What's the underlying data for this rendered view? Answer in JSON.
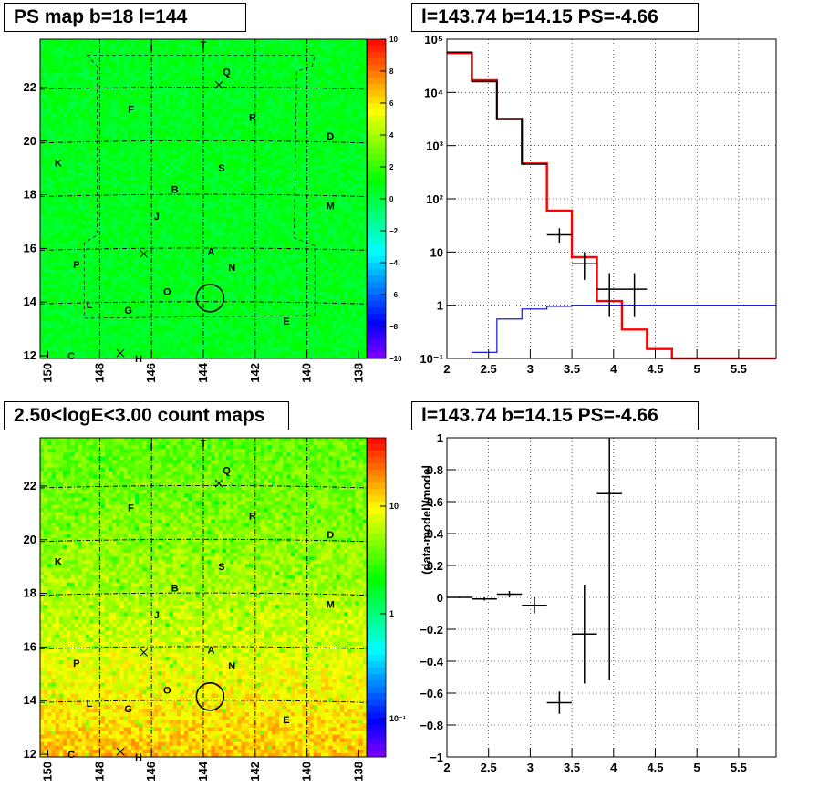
{
  "panels": {
    "ps_map": {
      "title": "PS map b=18 l=144",
      "xticks": [
        "150",
        "148",
        "146",
        "144",
        "142",
        "140",
        "138"
      ],
      "yticks": [
        "12",
        "14",
        "16",
        "18",
        "20",
        "22"
      ],
      "colorbar_ticks": [
        "10",
        "8",
        "6",
        "4",
        "2",
        "0",
        "−2",
        "−4",
        "−6",
        "−8",
        "−10"
      ]
    },
    "spectrum": {
      "title": "l=143.74 b=14.15 PS=-4.66",
      "xticks": [
        "2",
        "2.5",
        "3",
        "3.5",
        "4",
        "4.5",
        "5",
        "5.5"
      ],
      "yticks": [
        "10⁻¹",
        "1",
        "10",
        "10²",
        "10³",
        "10⁴",
        "10⁵"
      ]
    },
    "count_map": {
      "title": "2.50<logE<3.00 count maps",
      "xticks": [
        "150",
        "148",
        "146",
        "144",
        "142",
        "140",
        "138"
      ],
      "yticks": [
        "12",
        "14",
        "16",
        "18",
        "20",
        "22"
      ],
      "colorbar_ticks": [
        "10",
        "1",
        "10⁻¹"
      ]
    },
    "residual": {
      "title": "l=143.74 b=14.15 PS=-4.66",
      "ylabel": "(data-model)/model",
      "xticks": [
        "2",
        "2.5",
        "3",
        "3.5",
        "4",
        "4.5",
        "5",
        "5.5"
      ],
      "yticks": [
        "−1",
        "−0.8",
        "−0.6",
        "−0.4",
        "−0.2",
        "0",
        "0.2",
        "0.4",
        "0.6",
        "0.8",
        "1"
      ]
    }
  },
  "map_labels": [
    {
      "t": "I",
      "l": 146.0,
      "b": 23.5
    },
    {
      "t": "T",
      "l": 144.0,
      "b": 23.6
    },
    {
      "t": "Q",
      "l": 143.1,
      "b": 22.6
    },
    {
      "t": "F",
      "l": 146.8,
      "b": 21.2
    },
    {
      "t": "R",
      "l": 142.1,
      "b": 20.9
    },
    {
      "t": "D",
      "l": 139.1,
      "b": 20.2
    },
    {
      "t": "K",
      "l": 149.6,
      "b": 19.2
    },
    {
      "t": "S",
      "l": 143.3,
      "b": 19.0
    },
    {
      "t": "B",
      "l": 145.1,
      "b": 18.2
    },
    {
      "t": "M",
      "l": 139.1,
      "b": 17.6
    },
    {
      "t": "J",
      "l": 145.8,
      "b": 17.2
    },
    {
      "t": "A",
      "l": 143.7,
      "b": 15.9
    },
    {
      "t": "P",
      "l": 148.9,
      "b": 15.4
    },
    {
      "t": "N",
      "l": 142.9,
      "b": 15.3
    },
    {
      "t": "O",
      "l": 145.4,
      "b": 14.4
    },
    {
      "t": "L",
      "l": 148.4,
      "b": 13.9
    },
    {
      "t": "G",
      "l": 146.9,
      "b": 13.7
    },
    {
      "t": "E",
      "l": 140.8,
      "b": 13.3
    },
    {
      "t": "C",
      "l": 149.1,
      "b": 12.0
    },
    {
      "t": "H",
      "l": 146.5,
      "b": 11.9
    }
  ],
  "map_crosses": [
    {
      "l": 143.4,
      "b": 22.1
    },
    {
      "l": 146.3,
      "b": 15.8
    },
    {
      "l": 147.2,
      "b": 12.1
    }
  ],
  "map_circle": {
    "l": 143.74,
    "b": 14.15
  },
  "chart_data": [
    {
      "type": "heatmap",
      "title": "PS map b=18 l=144",
      "xlim": [
        150.3,
        137.7
      ],
      "ylim": [
        11.9,
        23.8
      ],
      "zlim": [
        -10,
        10
      ],
      "colormap": "rainbow",
      "dominant_value": 0
    },
    {
      "type": "line",
      "title": "l=143.74 b=14.15 PS=-4.66",
      "yscale": "log",
      "xlim": [
        2,
        5.95
      ],
      "ylim": [
        0.1,
        100000
      ],
      "grid": true,
      "series": [
        {
          "color": "#ff0000",
          "style": "step",
          "edges": [
            2,
            2.3,
            2.6,
            2.9,
            3.2,
            3.5,
            3.8,
            4.1,
            4.4,
            4.7,
            5.0,
            5.3,
            5.6,
            5.95
          ],
          "values": [
            55000,
            17000,
            3200,
            460,
            60,
            8,
            1.2,
            0.35,
            0.15,
            0.1,
            0.1,
            0.1,
            0.1
          ]
        },
        {
          "color": "#000000",
          "style": "step",
          "edges": [
            2,
            2.3,
            2.6,
            2.9,
            3.2
          ],
          "values": [
            57000,
            16000,
            3100,
            450
          ]
        },
        {
          "color": "#0000cc",
          "style": "step",
          "edges": [
            2,
            2.3,
            2.6,
            2.9,
            3.2,
            3.5,
            3.8,
            5.95
          ],
          "values": [
            0.1,
            0.13,
            0.55,
            0.85,
            0.95,
            1.0,
            1.0
          ]
        },
        {
          "color": "#000000",
          "style": "errorbar",
          "points": [
            {
              "x": 3.35,
              "y": 21,
              "xerr": 0.15,
              "ylo": 15,
              "yhi": 28
            },
            {
              "x": 3.65,
              "y": 6,
              "xerr": 0.15,
              "ylo": 3,
              "yhi": 10
            },
            {
              "x": 3.95,
              "y": 2,
              "xerr": 0.15,
              "ylo": 0.6,
              "yhi": 4
            },
            {
              "x": 4.25,
              "y": 2,
              "xerr": 0.15,
              "ylo": 0.6,
              "yhi": 4
            }
          ]
        }
      ]
    },
    {
      "type": "heatmap",
      "title": "2.50<logE<3.00 count maps",
      "xlim": [
        150.3,
        137.7
      ],
      "ylim": [
        11.9,
        23.8
      ],
      "zscale": "log",
      "colormap": "rainbow"
    },
    {
      "type": "scatter",
      "title": "l=143.74 b=14.15 PS=-4.66",
      "ylabel": "(data-model)/model",
      "xlim": [
        2,
        5.95
      ],
      "ylim": [
        -1,
        1
      ],
      "grid": true,
      "points": [
        {
          "x": 2.15,
          "y": 0.0,
          "xerr": 0.15,
          "yerr": 0.005
        },
        {
          "x": 2.45,
          "y": -0.01,
          "xerr": 0.15,
          "yerr": 0.01
        },
        {
          "x": 2.75,
          "y": 0.02,
          "xerr": 0.15,
          "yerr": 0.02
        },
        {
          "x": 3.05,
          "y": -0.05,
          "xerr": 0.15,
          "yerr": 0.05
        },
        {
          "x": 3.35,
          "y": -0.66,
          "xerr": 0.15,
          "yerr": 0.07
        },
        {
          "x": 3.65,
          "y": -0.23,
          "xerr": 0.15,
          "yerr": 0.31
        },
        {
          "x": 3.95,
          "y": 0.65,
          "xerr": 0.15,
          "yerr": 1.17
        }
      ]
    }
  ]
}
